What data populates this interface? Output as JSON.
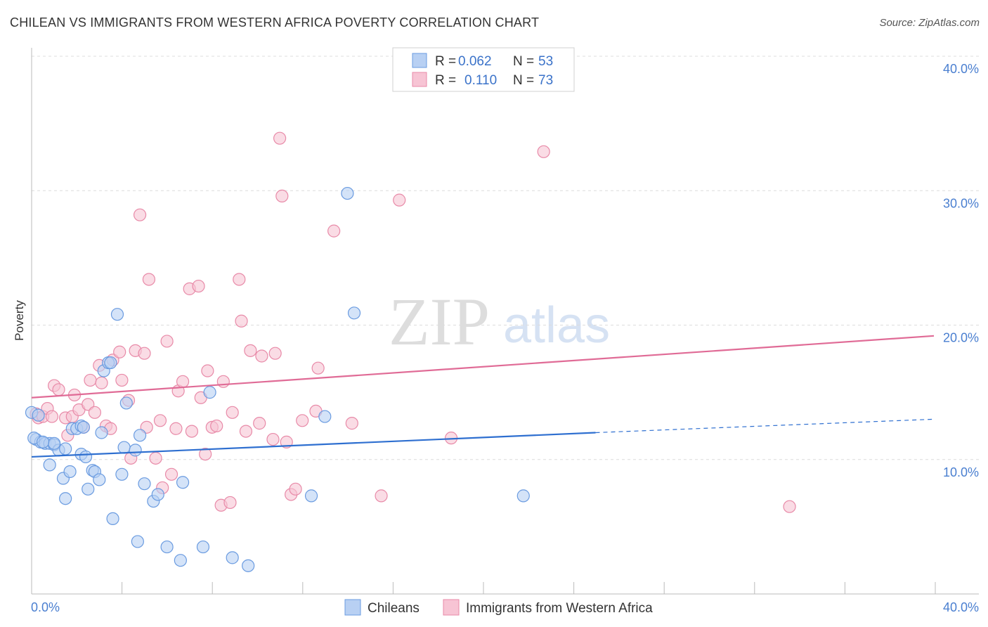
{
  "title": "CHILEAN VS IMMIGRANTS FROM WESTERN AFRICA POVERTY CORRELATION CHART",
  "source": "Source: ZipAtlas.com",
  "watermark": {
    "zip": "ZIP",
    "atlas": "atlas"
  },
  "legend": {
    "r_label": "R =",
    "n_label": "N =",
    "rows": [
      {
        "r": "0.062",
        "n": "53",
        "color": "#6a9be0",
        "fill": "#b8d0f3"
      },
      {
        "r": "0.110",
        "n": "73",
        "color": "#e88aa8",
        "fill": "#f7c4d4"
      }
    ]
  },
  "chart_data": {
    "type": "scatter",
    "ylabel": "Poverty",
    "xlim": [
      0,
      40
    ],
    "ylim": [
      0,
      40
    ],
    "x_ticks_labels": [
      "0.0%",
      "40.0%"
    ],
    "y_ticks": [
      10,
      20,
      30,
      40
    ],
    "y_tick_labels": [
      "10.0%",
      "20.0%",
      "30.0%",
      "40.0%"
    ],
    "grid": true,
    "series": [
      {
        "name": "Chileans",
        "stroke": "#6a9be0",
        "fill": "#b8d0f3",
        "line_color": "#2e6fd0",
        "trend": {
          "x0": 0,
          "y0": 10.2,
          "x1": 25,
          "y1": 12.0,
          "x_dash_end": 40,
          "y_dash_end": 13.0
        },
        "points": [
          [
            0.2,
            11.5
          ],
          [
            0.4,
            11.3
          ],
          [
            0.6,
            11.2
          ],
          [
            0.8,
            11.2
          ],
          [
            1.0,
            11.1
          ],
          [
            1.2,
            10.7
          ],
          [
            1.5,
            10.8
          ],
          [
            0.8,
            9.6
          ],
          [
            1.4,
            8.6
          ],
          [
            1.5,
            7.1
          ],
          [
            1.7,
            9.1
          ],
          [
            1.8,
            12.3
          ],
          [
            2.0,
            12.3
          ],
          [
            2.2,
            12.5
          ],
          [
            2.2,
            10.4
          ],
          [
            2.4,
            10.2
          ],
          [
            2.5,
            7.8
          ],
          [
            2.7,
            9.2
          ],
          [
            2.8,
            9.1
          ],
          [
            3.0,
            8.5
          ],
          [
            3.1,
            12.0
          ],
          [
            3.2,
            16.6
          ],
          [
            3.4,
            17.2
          ],
          [
            3.6,
            5.6
          ],
          [
            3.8,
            20.8
          ],
          [
            4.0,
            8.9
          ],
          [
            4.1,
            10.9
          ],
          [
            4.2,
            14.2
          ],
          [
            4.6,
            10.7
          ],
          [
            4.7,
            3.9
          ],
          [
            4.8,
            11.8
          ],
          [
            5.0,
            8.2
          ],
          [
            5.4,
            6.9
          ],
          [
            5.6,
            7.4
          ],
          [
            6.0,
            3.5
          ],
          [
            6.6,
            2.5
          ],
          [
            6.7,
            8.3
          ],
          [
            7.6,
            3.5
          ],
          [
            7.9,
            15.0
          ],
          [
            8.9,
            2.7
          ],
          [
            9.6,
            2.1
          ],
          [
            12.4,
            7.3
          ],
          [
            13.0,
            13.2
          ],
          [
            14.0,
            29.8
          ],
          [
            14.3,
            20.9
          ],
          [
            0.0,
            13.5
          ],
          [
            0.3,
            13.3
          ],
          [
            1.0,
            11.2
          ],
          [
            2.3,
            12.4
          ],
          [
            3.5,
            17.2
          ],
          [
            21.8,
            7.3
          ],
          [
            0.1,
            11.6
          ],
          [
            0.5,
            11.3
          ]
        ]
      },
      {
        "name": "Immigrants from Western Africa",
        "stroke": "#e88aa8",
        "fill": "#f7c4d4",
        "line_color": "#e06b96",
        "trend": {
          "x0": 0,
          "y0": 14.6,
          "x1": 40,
          "y1": 19.2
        },
        "points": [
          [
            0.2,
            13.4
          ],
          [
            0.3,
            13.1
          ],
          [
            0.5,
            13.2
          ],
          [
            0.7,
            13.8
          ],
          [
            0.9,
            13.2
          ],
          [
            1.0,
            15.5
          ],
          [
            1.2,
            15.2
          ],
          [
            1.5,
            13.1
          ],
          [
            1.6,
            11.8
          ],
          [
            1.8,
            13.2
          ],
          [
            1.9,
            14.8
          ],
          [
            2.1,
            13.7
          ],
          [
            2.3,
            12.4
          ],
          [
            2.5,
            14.1
          ],
          [
            2.6,
            15.9
          ],
          [
            2.8,
            13.5
          ],
          [
            3.0,
            17.0
          ],
          [
            3.1,
            15.7
          ],
          [
            3.3,
            12.5
          ],
          [
            3.5,
            12.3
          ],
          [
            3.6,
            17.4
          ],
          [
            3.9,
            18.0
          ],
          [
            4.0,
            15.9
          ],
          [
            4.3,
            14.4
          ],
          [
            4.4,
            10.1
          ],
          [
            4.6,
            18.1
          ],
          [
            4.8,
            28.2
          ],
          [
            5.0,
            17.9
          ],
          [
            5.1,
            12.4
          ],
          [
            5.2,
            23.4
          ],
          [
            5.5,
            10.1
          ],
          [
            5.7,
            12.9
          ],
          [
            5.8,
            7.9
          ],
          [
            6.0,
            18.8
          ],
          [
            6.2,
            8.9
          ],
          [
            6.4,
            12.3
          ],
          [
            6.5,
            15.1
          ],
          [
            6.7,
            15.8
          ],
          [
            7.0,
            22.7
          ],
          [
            7.1,
            12.1
          ],
          [
            7.4,
            22.9
          ],
          [
            7.5,
            14.6
          ],
          [
            7.7,
            10.4
          ],
          [
            7.8,
            16.6
          ],
          [
            8.0,
            12.4
          ],
          [
            8.2,
            12.5
          ],
          [
            8.4,
            6.6
          ],
          [
            8.5,
            15.8
          ],
          [
            8.8,
            6.8
          ],
          [
            8.9,
            13.5
          ],
          [
            9.2,
            23.4
          ],
          [
            9.3,
            20.3
          ],
          [
            9.5,
            12.1
          ],
          [
            9.7,
            18.1
          ],
          [
            10.1,
            12.7
          ],
          [
            10.2,
            17.7
          ],
          [
            10.7,
            11.5
          ],
          [
            10.8,
            17.9
          ],
          [
            11.1,
            29.6
          ],
          [
            11.0,
            33.9
          ],
          [
            11.3,
            11.3
          ],
          [
            11.5,
            7.4
          ],
          [
            11.7,
            7.8
          ],
          [
            12.0,
            12.9
          ],
          [
            12.6,
            13.6
          ],
          [
            12.7,
            16.8
          ],
          [
            13.4,
            27.0
          ],
          [
            14.2,
            12.7
          ],
          [
            15.5,
            7.3
          ],
          [
            16.3,
            29.3
          ],
          [
            18.6,
            11.6
          ],
          [
            22.7,
            32.9
          ],
          [
            33.6,
            6.5
          ]
        ]
      }
    ]
  },
  "bottom_legend": [
    {
      "label": "Chileans",
      "stroke": "#6a9be0",
      "fill": "#b8d0f3"
    },
    {
      "label": "Immigrants from Western Africa",
      "stroke": "#e88aa8",
      "fill": "#f7c4d4"
    }
  ]
}
